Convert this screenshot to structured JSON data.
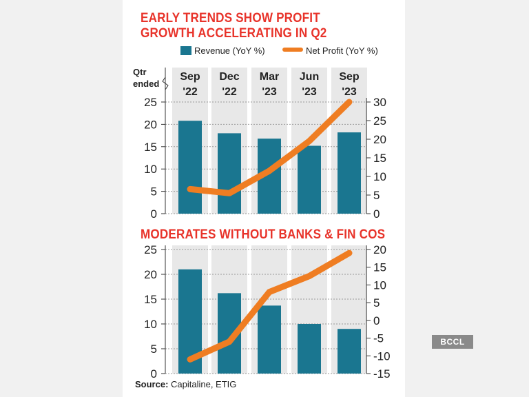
{
  "source_prefix": "Source:",
  "source_text": " Capitaline, ETIG",
  "watermark": "BCCL",
  "qtr_label": [
    "Qtr",
    "ended"
  ],
  "colors": {
    "bar": "#1a7690",
    "line": "#ef7d22",
    "title": "#e8332a",
    "band": "#e8e8e8"
  },
  "chart_data": [
    {
      "type": "bar",
      "title_lines": [
        "EARLY TRENDS SHOW PROFIT",
        "GROWTH ACCELERATING IN Q2"
      ],
      "legend": [
        "Revenue (YoY %)",
        "Net Profit (YoY %)"
      ],
      "categories": [
        [
          "Sep",
          "'22"
        ],
        [
          "Dec",
          "'22"
        ],
        [
          "Mar",
          "'23"
        ],
        [
          "Jun",
          "'23"
        ],
        [
          "Sep",
          "'23"
        ]
      ],
      "series": [
        {
          "name": "Revenue (YoY %)",
          "type": "bar",
          "axis": "left",
          "values": [
            20.8,
            18,
            16.8,
            15.2,
            18.2
          ]
        },
        {
          "name": "Net Profit (YoY %)",
          "type": "line",
          "axis": "right",
          "values": [
            6.6,
            5.5,
            11.5,
            19.5,
            30
          ]
        }
      ],
      "ylim_left": [
        0,
        25
      ],
      "yticks_left": [
        0,
        5,
        10,
        15,
        20,
        25
      ],
      "ylim_right": [
        0,
        30
      ],
      "yticks_right": [
        0,
        5,
        10,
        15,
        20,
        25,
        30
      ],
      "grid": true
    },
    {
      "type": "bar",
      "title": "MODERATES WITHOUT BANKS & FIN COS",
      "categories": [
        [
          "Sep",
          "'22"
        ],
        [
          "Dec",
          "'22"
        ],
        [
          "Mar",
          "'23"
        ],
        [
          "Jun",
          "'23"
        ],
        [
          "Sep",
          "'23"
        ]
      ],
      "series": [
        {
          "name": "Revenue (YoY %)",
          "type": "bar",
          "axis": "left",
          "values": [
            21,
            16.2,
            13.7,
            10,
            9
          ]
        },
        {
          "name": "Net Profit (YoY %)",
          "type": "line",
          "axis": "right",
          "values": [
            -11,
            -6,
            8,
            12.5,
            19
          ]
        }
      ],
      "ylim_left": [
        0,
        25
      ],
      "yticks_left": [
        0,
        5,
        10,
        15,
        20,
        25
      ],
      "ylim_right": [
        -15,
        20
      ],
      "yticks_right": [
        -15,
        -10,
        -5,
        0,
        5,
        10,
        15,
        20
      ],
      "grid": true
    }
  ]
}
